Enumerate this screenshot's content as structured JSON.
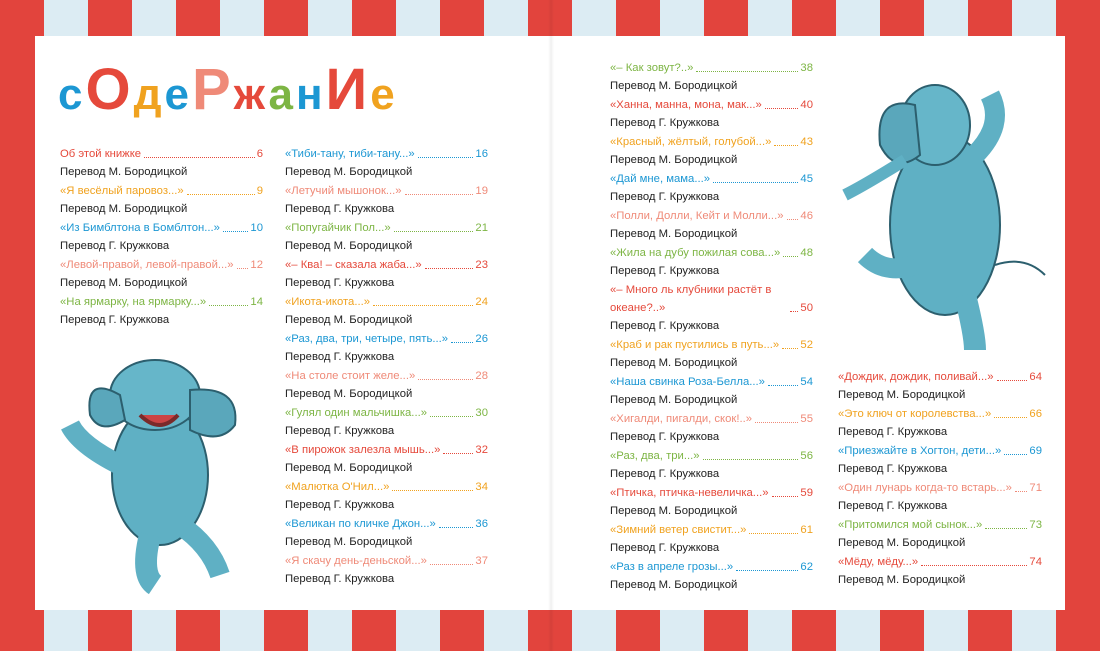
{
  "title": [
    "с",
    "О",
    "д",
    "е",
    "Р",
    "ж",
    "а",
    "н",
    "И",
    "е"
  ],
  "columns": [
    [
      {
        "title": "Об этой книжке",
        "page": 6,
        "translator": "Перевод М. Бородицкой",
        "color": "#e5493b"
      },
      {
        "title": "«Я весёлый паровоз...»",
        "page": 9,
        "translator": "Перевод М. Бородицкой",
        "color": "#f0a21f"
      },
      {
        "title": "«Из Бимблтона в Бомблтон...»",
        "page": 10,
        "translator": "Перевод Г. Кружкова",
        "color": "#1c97d3"
      },
      {
        "title": "«Левой-правой, левой-правой...»",
        "page": 12,
        "translator": "Перевод М. Бородицкой",
        "color": "#ef8a78"
      },
      {
        "title": "«На ярмарку, на ярмарку...»",
        "page": 14,
        "translator": "Перевод Г. Кружкова",
        "color": "#7db544"
      }
    ],
    [
      {
        "title": "«Тиби-тану, тиби-тану...»",
        "page": 16,
        "translator": "Перевод М. Бородицкой",
        "color": "#1c97d3"
      },
      {
        "title": "«Летучий мышонок...»",
        "page": 19,
        "translator": "Перевод Г. Кружкова",
        "color": "#ef8a78"
      },
      {
        "title": "«Попугайчик Пол...»",
        "page": 21,
        "translator": "Перевод М. Бородицкой",
        "color": "#7db544"
      },
      {
        "title": "«– Ква! – сказала жаба...»",
        "page": 23,
        "translator": "Перевод Г. Кружкова",
        "color": "#e5493b"
      },
      {
        "title": "«Икота-икота...»",
        "page": 24,
        "translator": "Перевод М. Бородицкой",
        "color": "#f0a21f"
      },
      {
        "title": "«Раз, два, три, четыре, пять...»",
        "page": 26,
        "translator": "Перевод Г. Кружкова",
        "color": "#1c97d3"
      },
      {
        "title": "«На столе стоит желе...»",
        "page": 28,
        "translator": "Перевод М. Бородицкой",
        "color": "#ef8a78"
      },
      {
        "title": "«Гулял один мальчишка...»",
        "page": 30,
        "translator": "Перевод Г. Кружкова",
        "color": "#7db544"
      },
      {
        "title": "«В пирожок залезла мышь...»",
        "page": 32,
        "translator": "Перевод М. Бородицкой",
        "color": "#e5493b"
      },
      {
        "title": "«Малютка О'Нил...»",
        "page": 34,
        "translator": "Перевод Г. Кружкова",
        "color": "#f0a21f"
      },
      {
        "title": "«Великан по кличке Джон...»",
        "page": 36,
        "translator": "Перевод М. Бородицкой",
        "color": "#1c97d3"
      },
      {
        "title": "«Я скачу день-деньской...»",
        "page": 37,
        "translator": "Перевод Г. Кружкова",
        "color": "#ef8a78"
      }
    ],
    [
      {
        "title": "«– Как зовут?..»",
        "page": 38,
        "translator": "Перевод М. Бородицкой",
        "color": "#7db544"
      },
      {
        "title": "«Ханна, манна, мона, мак...»",
        "page": 40,
        "translator": "Перевод Г. Кружкова",
        "color": "#e5493b"
      },
      {
        "title": "«Красный, жёлтый, голубой...»",
        "page": 43,
        "translator": "Перевод М. Бородицкой",
        "color": "#f0a21f"
      },
      {
        "title": "«Дай мне, мама...»",
        "page": 45,
        "translator": "Перевод Г. Кружкова",
        "color": "#1c97d3"
      },
      {
        "title": "«Полли, Долли, Кейт и Молли...»",
        "page": 46,
        "translator": "Перевод М. Бородицкой",
        "color": "#ef8a78"
      },
      {
        "title": "«Жила на дубу пожилая сова...»",
        "page": 48,
        "translator": "Перевод Г. Кружкова",
        "color": "#7db544"
      },
      {
        "title": "«– Много ль клубники растёт в океане?..»",
        "page": 50,
        "translator": "Перевод Г. Кружкова",
        "color": "#e5493b"
      },
      {
        "title": "«Краб и рак пустились в путь...»",
        "page": 52,
        "translator": "Перевод М. Бородицкой",
        "color": "#f0a21f"
      },
      {
        "title": "«Наша свинка Роза-Белла...»",
        "page": 54,
        "translator": "Перевод М. Бородицкой",
        "color": "#1c97d3"
      },
      {
        "title": "«Хигалди, пигалди, скок!..»",
        "page": 55,
        "translator": "Перевод Г. Кружкова",
        "color": "#ef8a78"
      },
      {
        "title": "«Раз, два, три...»",
        "page": 56,
        "translator": "Перевод Г. Кружкова",
        "color": "#7db544"
      },
      {
        "title": "«Птичка, птичка-невеличка...»",
        "page": 59,
        "translator": "Перевод М. Бородицкой",
        "color": "#e5493b"
      },
      {
        "title": "«Зимний ветер свистит...»",
        "page": 61,
        "translator": "Перевод Г. Кружкова",
        "color": "#f0a21f"
      },
      {
        "title": "«Раз в апреле грозы...»",
        "page": 62,
        "translator": "Перевод М. Бородицкой",
        "color": "#1c97d3"
      }
    ],
    [
      {
        "title": "«Дождик, дождик, поливай...»",
        "page": 64,
        "translator": "Перевод М. Бородицкой",
        "color": "#e5493b"
      },
      {
        "title": "«Это ключ от королевства...»",
        "page": 66,
        "translator": "Перевод Г. Кружкова",
        "color": "#f0a21f"
      },
      {
        "title": "«Приезжайте в Хогтон, дети...»",
        "page": 69,
        "translator": "Перевод Г. Кружкова",
        "color": "#1c97d3"
      },
      {
        "title": "«Один лунарь когда-то встарь...»",
        "page": 71,
        "translator": "Перевод Г. Кружкова",
        "color": "#ef8a78"
      },
      {
        "title": "«Притомился мой сынок...»",
        "page": 73,
        "translator": "Перевод М. Бородицкой",
        "color": "#7db544"
      },
      {
        "title": "«Мёду, мёду...»",
        "page": 74,
        "translator": "Перевод М. Бородицкой",
        "color": "#e5493b"
      }
    ]
  ]
}
